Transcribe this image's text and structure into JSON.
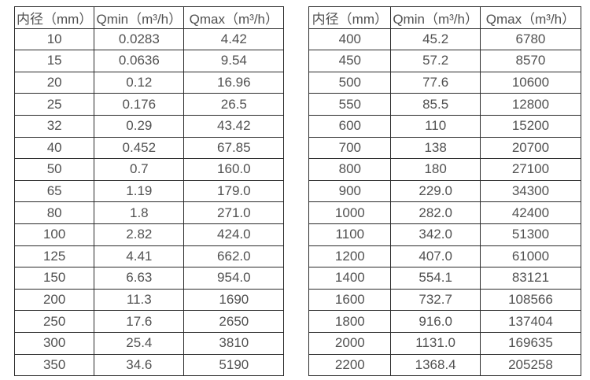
{
  "styles": {
    "border_color": "#2b2b2b",
    "text_color": "#515151",
    "background_color": "#ffffff"
  },
  "tables": {
    "left": {
      "name": "flow-rate-table-small-diameters",
      "headers": [
        "内径（mm）",
        "Qmin（m³/h）",
        "Qmax（m³/h）"
      ],
      "rows": [
        [
          "10",
          "0.0283",
          "4.42"
        ],
        [
          "15",
          "0.0636",
          "9.54"
        ],
        [
          "20",
          "0.12",
          "16.96"
        ],
        [
          "25",
          "0.176",
          "26.5"
        ],
        [
          "32",
          "0.29",
          "43.42"
        ],
        [
          "40",
          "0.452",
          "67.85"
        ],
        [
          "50",
          "0.7",
          "160.0"
        ],
        [
          "65",
          "1.19",
          "179.0"
        ],
        [
          "80",
          "1.8",
          "271.0"
        ],
        [
          "100",
          "2.82",
          "424.0"
        ],
        [
          "125",
          "4.41",
          "662.0"
        ],
        [
          "150",
          "6.63",
          "954.0"
        ],
        [
          "200",
          "11.3",
          "1690"
        ],
        [
          "250",
          "17.6",
          "2650"
        ],
        [
          "300",
          "25.4",
          "3810"
        ],
        [
          "350",
          "34.6",
          "5190"
        ]
      ]
    },
    "right": {
      "name": "flow-rate-table-large-diameters",
      "headers": [
        "内径（mm）",
        "Qmin（m³/h）",
        "Qmax（m³/h）"
      ],
      "rows": [
        [
          "400",
          "45.2",
          "6780"
        ],
        [
          "450",
          "57.2",
          "8570"
        ],
        [
          "500",
          "77.6",
          "10600"
        ],
        [
          "550",
          "85.5",
          "12800"
        ],
        [
          "600",
          "110",
          "15200"
        ],
        [
          "700",
          "138",
          "20700"
        ],
        [
          "800",
          "180",
          "27100"
        ],
        [
          "900",
          "229.0",
          "34300"
        ],
        [
          "1000",
          "282.0",
          "42400"
        ],
        [
          "1100",
          "342.0",
          "51300"
        ],
        [
          "1200",
          "407.0",
          "61000"
        ],
        [
          "1400",
          "554.1",
          "83121"
        ],
        [
          "1600",
          "732.7",
          "108566"
        ],
        [
          "1800",
          "916.0",
          "137404"
        ],
        [
          "2000",
          "1131.0",
          "169635"
        ],
        [
          "2200",
          "1368.4",
          "205258"
        ]
      ]
    }
  }
}
